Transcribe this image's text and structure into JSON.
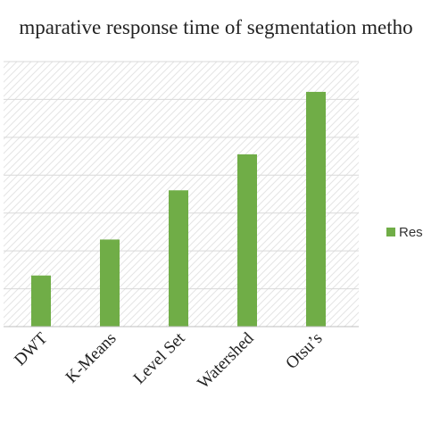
{
  "chart_data": {
    "type": "bar",
    "title": "mparative response time of segmentation metho",
    "xlabel": "",
    "ylabel": "",
    "categories": [
      "DWT",
      "K-Means",
      "Level Set",
      "Watershed",
      "Otsu’s"
    ],
    "series": [
      {
        "name": "Res",
        "values": [
          1.35,
          2.3,
          3.6,
          4.55,
          6.2
        ]
      }
    ],
    "ylim": [
      0,
      7
    ],
    "grid": true,
    "legend_position": "right",
    "colors": {
      "bar": "#70ad47",
      "grid": "#d9d9d9",
      "plot_hatch": "#e4e4e4",
      "axis": "#bfbfbf",
      "text": "#222222"
    }
  }
}
